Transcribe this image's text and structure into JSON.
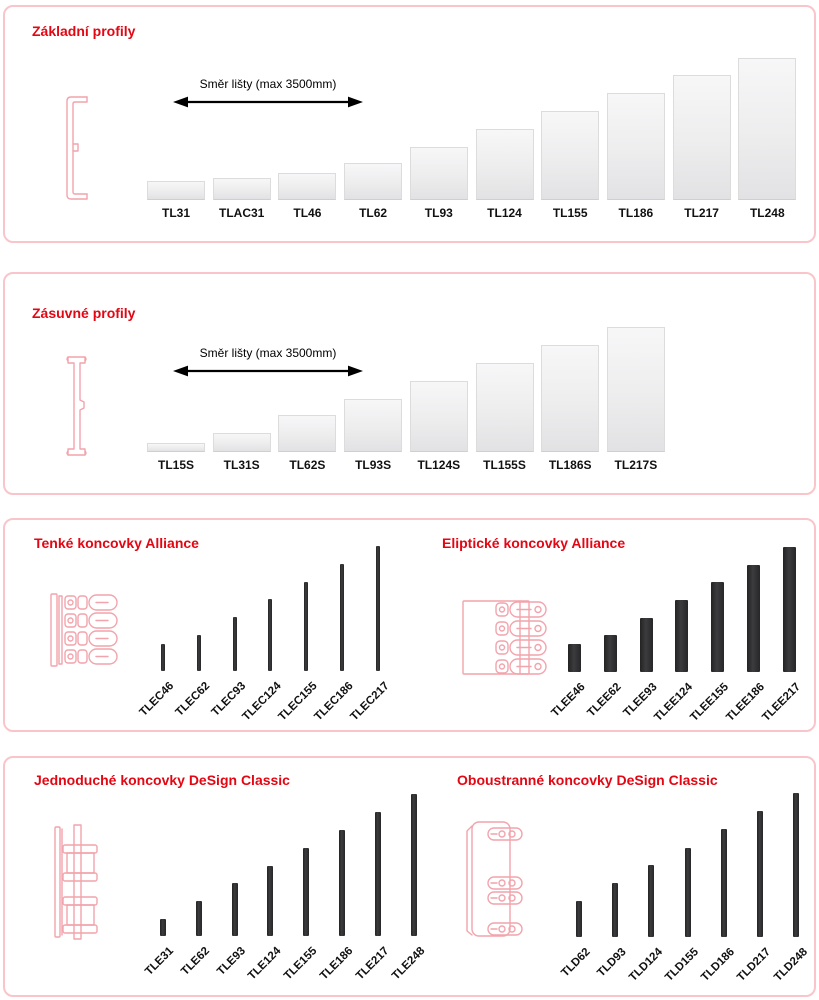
{
  "arrow_label": "Směr lišty (max 3500mm)",
  "styles": {
    "accent_red": "#e30613",
    "panel_border": "#f9c5ca",
    "light_bar_fill_top": "#f7f7f8",
    "light_bar_fill_bottom": "#e2e2e4",
    "light_bar_border": "#dcdcdd",
    "dark_bar_fill": "#2d2d2e",
    "illustration_stroke": "#f2a4ac",
    "label_color": "#111111"
  },
  "panels": [
    {
      "groups": [
        {
          "title": "Základní profily",
          "style": "light",
          "has_direction_arrow": true,
          "items": [
            {
              "label": "TL31",
              "size": 31,
              "h": 19
            },
            {
              "label": "TLAC31",
              "size": 31,
              "h": 22
            },
            {
              "label": "TL46",
              "size": 46,
              "h": 27
            },
            {
              "label": "TL62",
              "size": 62,
              "h": 37
            },
            {
              "label": "TL93",
              "size": 93,
              "h": 53
            },
            {
              "label": "TL124",
              "size": 124,
              "h": 71
            },
            {
              "label": "TL155",
              "size": 155,
              "h": 89
            },
            {
              "label": "TL186",
              "size": 186,
              "h": 107
            },
            {
              "label": "TL217",
              "size": 217,
              "h": 125
            },
            {
              "label": "TL248",
              "size": 248,
              "h": 142
            }
          ]
        }
      ]
    },
    {
      "groups": [
        {
          "title": "Zásuvné profily",
          "style": "light",
          "has_direction_arrow": true,
          "items": [
            {
              "label": "TL15S",
              "size": 15,
              "h": 9
            },
            {
              "label": "TL31S",
              "size": 31,
              "h": 19
            },
            {
              "label": "TL62S",
              "size": 62,
              "h": 37
            },
            {
              "label": "TL93S",
              "size": 93,
              "h": 53
            },
            {
              "label": "TL124S",
              "size": 124,
              "h": 71
            },
            {
              "label": "TL155S",
              "size": 155,
              "h": 89
            },
            {
              "label": "TL186S",
              "size": 186,
              "h": 107
            },
            {
              "label": "TL217S",
              "size": 217,
              "h": 125
            }
          ]
        }
      ]
    },
    {
      "groups": [
        {
          "title": "Tenké koncovky Alliance",
          "style": "dark",
          "items": [
            {
              "label": "TLEC46",
              "size": 46,
              "h": 27
            },
            {
              "label": "TLEC62",
              "size": 62,
              "h": 36
            },
            {
              "label": "TLEC93",
              "size": 93,
              "h": 54
            },
            {
              "label": "TLEC124",
              "size": 124,
              "h": 72
            },
            {
              "label": "TLEC155",
              "size": 155,
              "h": 89
            },
            {
              "label": "TLEC186",
              "size": 186,
              "h": 107
            },
            {
              "label": "TLEC217",
              "size": 217,
              "h": 125
            }
          ]
        },
        {
          "title": "Eliptické koncovky Alliance",
          "style": "dark",
          "items": [
            {
              "label": "TLEE46",
              "size": 46,
              "h": 28
            },
            {
              "label": "TLEE62",
              "size": 62,
              "h": 37
            },
            {
              "label": "TLEE93",
              "size": 93,
              "h": 54
            },
            {
              "label": "TLEE124",
              "size": 124,
              "h": 72
            },
            {
              "label": "TLEE155",
              "size": 155,
              "h": 90
            },
            {
              "label": "TLEE186",
              "size": 186,
              "h": 107
            },
            {
              "label": "TLEE217",
              "size": 217,
              "h": 125
            }
          ]
        }
      ]
    },
    {
      "groups": [
        {
          "title": "Jednoduché koncovky DeSign Classic",
          "style": "dark",
          "items": [
            {
              "label": "TLE31",
              "size": 31,
              "h": 17
            },
            {
              "label": "TLE62",
              "size": 62,
              "h": 35
            },
            {
              "label": "TLE93",
              "size": 93,
              "h": 53
            },
            {
              "label": "TLE124",
              "size": 124,
              "h": 70
            },
            {
              "label": "TLE155",
              "size": 155,
              "h": 88
            },
            {
              "label": "TLE186",
              "size": 186,
              "h": 106
            },
            {
              "label": "TLE217",
              "size": 217,
              "h": 124
            },
            {
              "label": "TLE248",
              "size": 248,
              "h": 142
            }
          ]
        },
        {
          "title": "Oboustranné koncovky DeSign Classic",
          "style": "dark",
          "items": [
            {
              "label": "TLD62",
              "size": 62,
              "h": 36
            },
            {
              "label": "TLD93",
              "size": 93,
              "h": 54
            },
            {
              "label": "TLD124",
              "size": 124,
              "h": 72
            },
            {
              "label": "TLD155",
              "size": 155,
              "h": 89
            },
            {
              "label": "TLD186",
              "size": 186,
              "h": 108
            },
            {
              "label": "TLD217",
              "size": 217,
              "h": 126
            },
            {
              "label": "TLD248",
              "size": 248,
              "h": 144
            }
          ]
        }
      ]
    }
  ]
}
